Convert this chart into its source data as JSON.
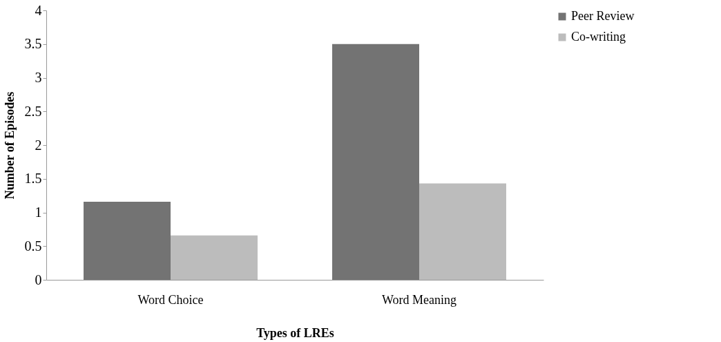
{
  "chart_data": {
    "type": "bar",
    "xlabel": "Types of LREs",
    "ylabel": "Number of Episodes",
    "categories": [
      "Word Choice",
      "Word Meaning"
    ],
    "series": [
      {
        "name": "Peer Review",
        "color": "#737373",
        "values": [
          1.16,
          3.5
        ]
      },
      {
        "name": "Co-writing",
        "color": "#bcbcbc",
        "values": [
          0.66,
          1.43
        ]
      }
    ],
    "ylim": [
      0,
      4
    ],
    "yticks": [
      0,
      0.5,
      1,
      1.5,
      2,
      2.5,
      3,
      3.5,
      4
    ],
    "grid": false,
    "legend": "right"
  }
}
